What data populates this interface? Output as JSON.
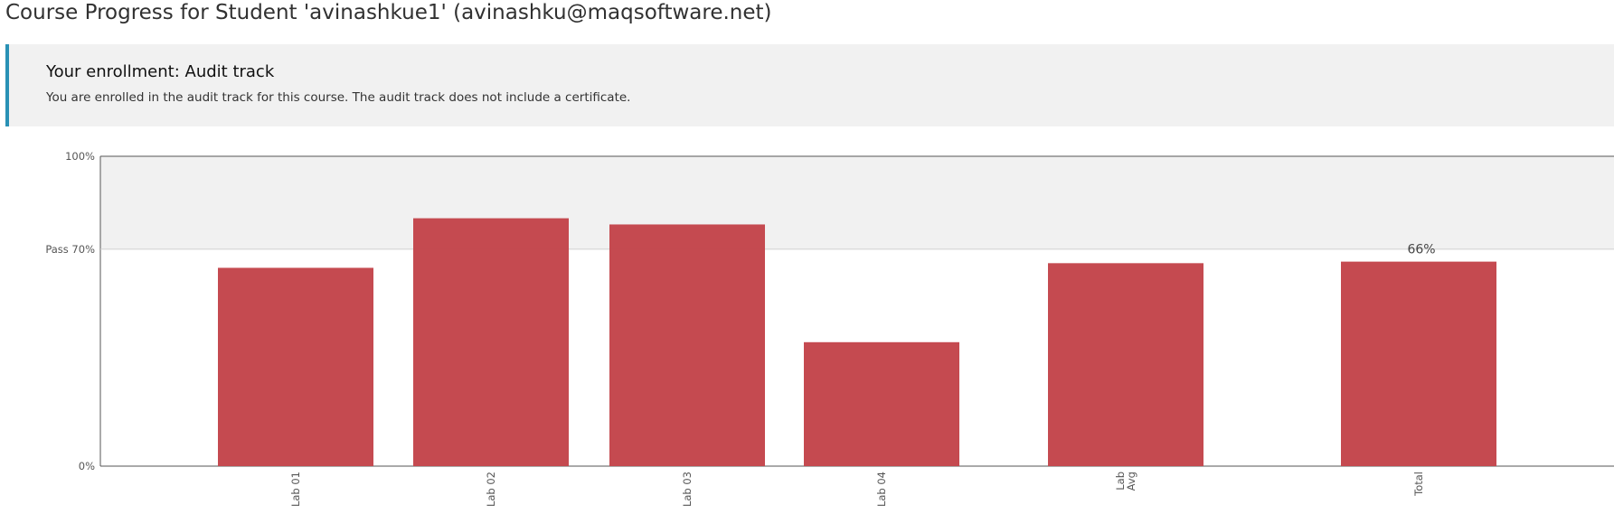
{
  "page": {
    "title": "Course Progress for Student 'avinashkue1' (avinashku@maqsoftware.net)"
  },
  "enrollment": {
    "title": "Your enrollment: Audit track",
    "description": "You are enrolled in the audit track for this course. The audit track does not include a certificate."
  },
  "colors": {
    "accent_border": "#2991b5",
    "bar_fill": "#c4464c",
    "panel_bg": "#f1f1f1",
    "above_pass_band": "#f1f1f1"
  },
  "chart_data": {
    "type": "bar",
    "categories": [
      "Lab 01",
      "Lab 02",
      "Lab 03",
      "Lab 04",
      "Lab Avg",
      "Total"
    ],
    "values": [
      64,
      80,
      78,
      40,
      65.5,
      66
    ],
    "ylim": [
      0,
      100
    ],
    "y_tick_labels": [
      "100%",
      "Pass 70%",
      "0%"
    ],
    "pass_threshold": 70,
    "annotations": [
      {
        "category": "Total",
        "text": "66%"
      }
    ]
  }
}
